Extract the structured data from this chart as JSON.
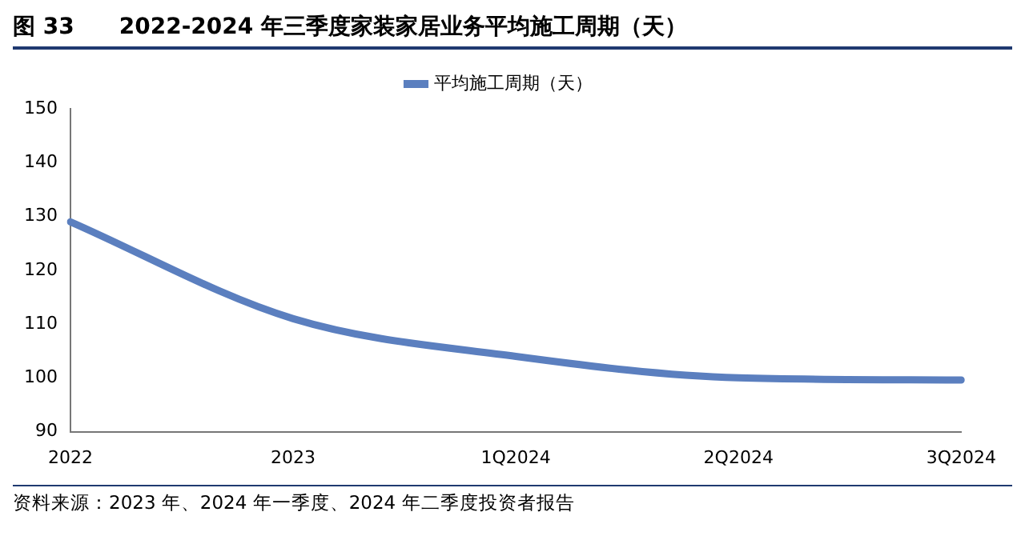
{
  "chart_data": {
    "type": "line",
    "title": "图 33　　2022-2024 年三季度家装家居业务平均施工周期（天）",
    "categories": [
      "2022",
      "2023",
      "1Q2024",
      "2Q2024",
      "3Q2024"
    ],
    "series": [
      {
        "name": "平均施工周期（天）",
        "color": "#5b7fbf",
        "values": [
          129,
          111,
          104,
          100,
          99.6
        ]
      }
    ],
    "ylim": [
      90,
      150
    ],
    "yticks": [
      90,
      100,
      110,
      120,
      130,
      140,
      150
    ],
    "grid": false,
    "legend": "top",
    "marker": "none",
    "line_style": "solid",
    "annotations": [
      "资料来源：2023 年、2024 年一季度、2024 年二季度投资者报告"
    ]
  }
}
